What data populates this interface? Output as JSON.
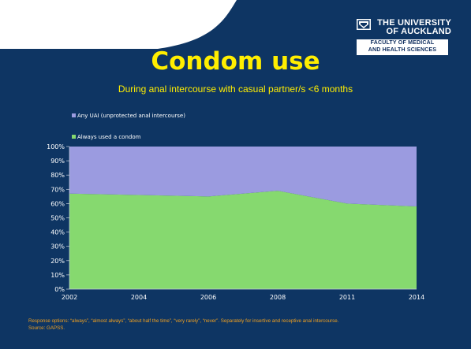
{
  "slide": {
    "title": "Condom use",
    "subtitle": "During anal intercourse with casual partner/s <6 months",
    "footnote_line1": "Response options: “always”, “almost always”, “about half the time”, “very rarely”, “never”.  Separately for insertive and receptive anal intercourse.",
    "footnote_line2": "Source: GAPSS.",
    "background_color": "#0e3563",
    "accent_color": "#ffee00",
    "footnote_color": "#f0a020"
  },
  "logo": {
    "name_line1": "THE UNIVERSITY",
    "name_line2": "OF AUCKLAND",
    "faculty_line1": "FACULTY OF MEDICAL",
    "faculty_line2": "AND HEALTH SCIENCES",
    "crest_icon": "university-crest-icon"
  },
  "chart_data": {
    "type": "area",
    "stacked": true,
    "categories": [
      "2002",
      "2004",
      "2006",
      "2008",
      "2011",
      "2014"
    ],
    "series": [
      {
        "name": "Always used a condom",
        "values": [
          67,
          66,
          65,
          69,
          60,
          58
        ],
        "color": "#86d96f"
      },
      {
        "name": "Any UAI (unprotected anal intercourse)",
        "values": [
          33,
          34,
          35,
          31,
          40,
          42
        ],
        "color": "#9b9be0"
      }
    ],
    "ylim": [
      0,
      100
    ],
    "y_ticks": [
      "0%",
      "10%",
      "20%",
      "30%",
      "40%",
      "50%",
      "60%",
      "70%",
      "80%",
      "90%",
      "100%"
    ],
    "grid": false,
    "legend_position": "top-left"
  }
}
